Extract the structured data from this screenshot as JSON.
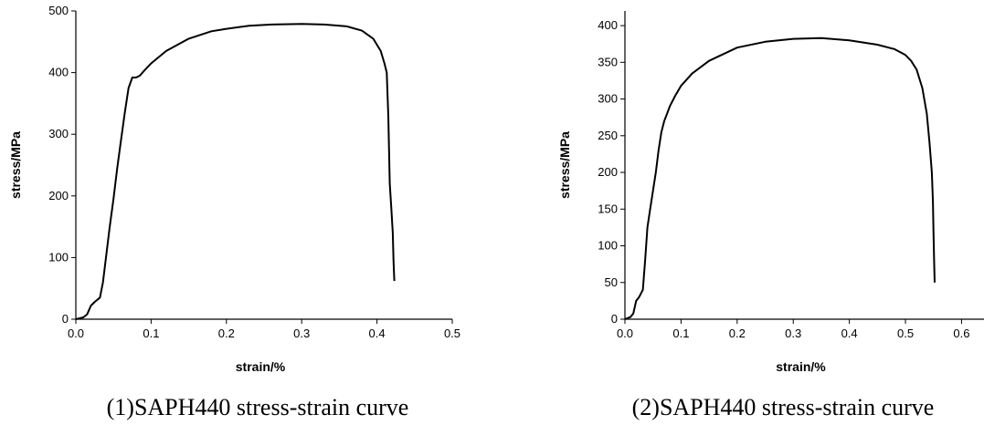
{
  "chart_data": [
    {
      "type": "line",
      "caption": "(1)SAPH440 stress-strain curve",
      "xlabel": "strain/%",
      "ylabel": "stress/MPa",
      "xlim": [
        0,
        0.5
      ],
      "ylim": [
        0,
        500
      ],
      "xticks": [
        "0.0",
        "0.1",
        "0.2",
        "0.3",
        "0.4",
        "0.5"
      ],
      "yticks": [
        "0",
        "100",
        "200",
        "300",
        "400",
        "500"
      ],
      "grid": false,
      "series": [
        {
          "x": [
            0,
            0.01,
            0.015,
            0.02,
            0.025,
            0.032,
            0.036,
            0.04,
            0.045,
            0.05,
            0.055,
            0.06,
            0.065,
            0.07,
            0.075,
            0.08,
            0.085,
            0.09,
            0.1,
            0.12,
            0.15,
            0.18,
            0.2,
            0.23,
            0.26,
            0.3,
            0.33,
            0.36,
            0.38,
            0.395,
            0.405,
            0.41,
            0.413,
            0.415,
            0.416,
            0.417,
            0.419,
            0.421,
            0.422,
            0.423
          ],
          "y": [
            0,
            3,
            8,
            22,
            28,
            35,
            60,
            100,
            150,
            195,
            245,
            290,
            335,
            375,
            392,
            392,
            395,
            402,
            415,
            435,
            455,
            467,
            471,
            476,
            478,
            479,
            478,
            475,
            468,
            455,
            435,
            415,
            400,
            330,
            275,
            220,
            180,
            140,
            95,
            62
          ]
        }
      ]
    },
    {
      "type": "line",
      "caption": "(2)SAPH440 stress-strain curve",
      "xlabel": "strain/%",
      "ylabel": "stress/MPa",
      "xlim": [
        0,
        0.64
      ],
      "ylim": [
        0,
        420
      ],
      "xticks": [
        "0.0",
        "0.1",
        "0.2",
        "0.3",
        "0.4",
        "0.5",
        "0.6"
      ],
      "yticks": [
        "0",
        "50",
        "100",
        "150",
        "200",
        "250",
        "300",
        "350",
        "400"
      ],
      "grid": false,
      "series": [
        {
          "x": [
            0,
            0.01,
            0.015,
            0.02,
            0.025,
            0.032,
            0.036,
            0.04,
            0.045,
            0.05,
            0.055,
            0.06,
            0.065,
            0.07,
            0.075,
            0.08,
            0.09,
            0.1,
            0.12,
            0.15,
            0.2,
            0.25,
            0.3,
            0.35,
            0.4,
            0.45,
            0.48,
            0.5,
            0.51,
            0.52,
            0.53,
            0.538,
            0.543,
            0.547,
            0.549,
            0.55,
            0.551,
            0.552
          ],
          "y": [
            0,
            3,
            8,
            25,
            30,
            40,
            80,
            125,
            150,
            175,
            200,
            230,
            255,
            270,
            280,
            290,
            305,
            318,
            335,
            352,
            370,
            378,
            382,
            383,
            380,
            374,
            368,
            360,
            352,
            340,
            315,
            280,
            240,
            200,
            160,
            120,
            85,
            50
          ]
        }
      ]
    }
  ]
}
